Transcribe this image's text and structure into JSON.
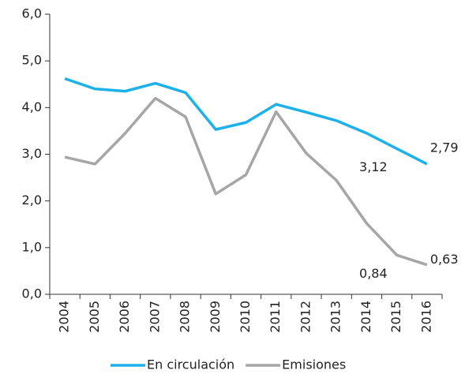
{
  "chart_data": {
    "type": "line",
    "categories": [
      "2004",
      "2005",
      "2006",
      "2007",
      "2008",
      "2009",
      "2010",
      "2011",
      "2012",
      "2013",
      "2014",
      "2015",
      "2016"
    ],
    "series": [
      {
        "name": "En circulación",
        "color": "#1db1ea",
        "values": [
          4.62,
          4.4,
          4.35,
          4.52,
          4.32,
          3.53,
          3.68,
          4.07,
          3.9,
          3.72,
          3.45,
          3.12,
          2.79
        ],
        "value_labels": [
          null,
          null,
          null,
          null,
          null,
          null,
          null,
          null,
          null,
          null,
          null,
          "3,12",
          "2,79"
        ]
      },
      {
        "name": "Emisiones",
        "color": "#a6a6a6",
        "values": [
          2.94,
          2.79,
          3.45,
          4.2,
          3.8,
          2.15,
          2.56,
          3.91,
          3.02,
          2.44,
          1.52,
          0.84,
          0.63
        ],
        "value_labels": [
          null,
          null,
          null,
          null,
          null,
          null,
          null,
          null,
          null,
          null,
          null,
          "0,84",
          "0,63"
        ]
      }
    ],
    "ylim": [
      0,
      6
    ],
    "yticks": [
      {
        "value": 0,
        "label": "0,0"
      },
      {
        "value": 1,
        "label": "1,0"
      },
      {
        "value": 2,
        "label": "2,0"
      },
      {
        "value": 3,
        "label": "3,0"
      },
      {
        "value": 4,
        "label": "4,0"
      },
      {
        "value": 5,
        "label": "5,0"
      },
      {
        "value": 6,
        "label": "6,0"
      }
    ],
    "legend": "bottom"
  }
}
